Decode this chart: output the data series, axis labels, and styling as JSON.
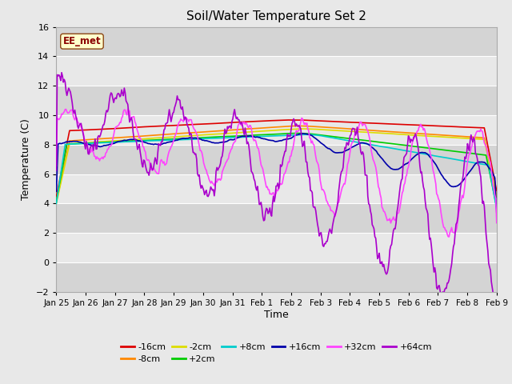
{
  "title": "Soil/Water Temperature Set 2",
  "xlabel": "Time",
  "ylabel": "Temperature (C)",
  "ylim": [
    -2,
    16
  ],
  "yticks": [
    -2,
    0,
    2,
    4,
    6,
    8,
    10,
    12,
    14,
    16
  ],
  "bg_light": "#e8e8e8",
  "bg_dark": "#d4d4d4",
  "grid_color": "#ffffff",
  "annotation_text": "EE_met",
  "annotation_bg": "#ffffcc",
  "annotation_border": "#8B0000",
  "series_colors": {
    "-16cm": "#dd0000",
    "-8cm": "#ff8800",
    "-2cm": "#dddd00",
    "+2cm": "#00cc00",
    "+8cm": "#00cccc",
    "+16cm": "#0000aa",
    "+32cm": "#ff44ff",
    "+64cm": "#aa00cc"
  },
  "xtick_labels": [
    "Jan 25",
    "Jan 26",
    "Jan 27",
    "Jan 28",
    "Jan 29",
    "Jan 30",
    "Jan 31",
    "Feb 1",
    "Feb 2",
    "Feb 3",
    "Feb 4",
    "Feb 5",
    "Feb 6",
    "Feb 7",
    "Feb 8",
    "Feb 9"
  ]
}
